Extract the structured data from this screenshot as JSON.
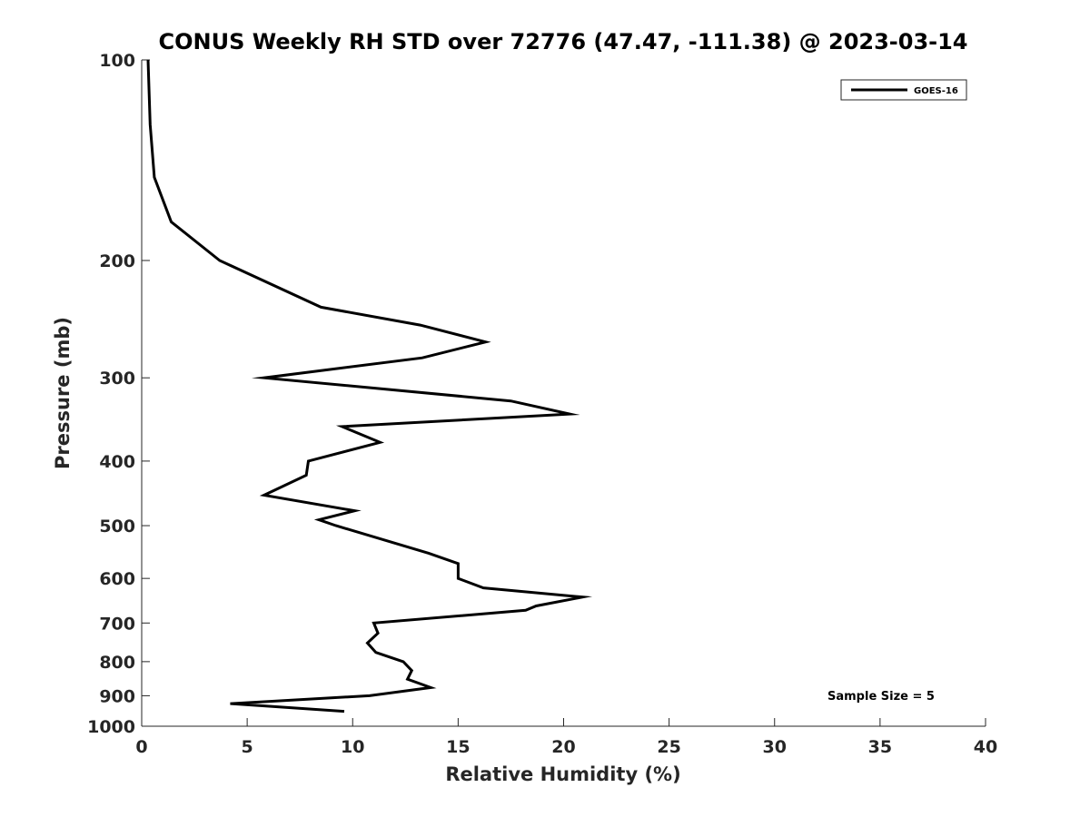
{
  "chart_data": {
    "type": "line",
    "title": "CONUS Weekly RH STD over 72776 (47.47, -111.38) @ 2023-03-14",
    "xlabel": "Relative Humidity (%)",
    "ylabel": "Pressure (mb)",
    "xlim": [
      0,
      40
    ],
    "ylim": [
      100,
      1000
    ],
    "y_scale": "log",
    "y_reversed": true,
    "x_ticks": [
      "0",
      "5",
      "10",
      "15",
      "20",
      "25",
      "30",
      "35",
      "40"
    ],
    "y_ticks": [
      "100",
      "200",
      "300",
      "400",
      "500",
      "600",
      "700",
      "800",
      "900",
      "1000"
    ],
    "grid": false,
    "legend_position": "top-right",
    "annotation": "Sample Size = 5",
    "series": [
      {
        "name": "GOES-16",
        "color": "#000000",
        "points": [
          {
            "x": 0.3,
            "p": 100
          },
          {
            "x": 0.4,
            "p": 125
          },
          {
            "x": 0.6,
            "p": 150
          },
          {
            "x": 1.4,
            "p": 175
          },
          {
            "x": 3.7,
            "p": 200
          },
          {
            "x": 8.5,
            "p": 235
          },
          {
            "x": 13.2,
            "p": 250
          },
          {
            "x": 16.3,
            "p": 265
          },
          {
            "x": 13.3,
            "p": 280
          },
          {
            "x": 5.8,
            "p": 300
          },
          {
            "x": 17.5,
            "p": 325
          },
          {
            "x": 20.3,
            "p": 340
          },
          {
            "x": 9.5,
            "p": 355
          },
          {
            "x": 11.3,
            "p": 375
          },
          {
            "x": 7.9,
            "p": 400
          },
          {
            "x": 7.8,
            "p": 420
          },
          {
            "x": 5.8,
            "p": 450
          },
          {
            "x": 10.1,
            "p": 475
          },
          {
            "x": 8.4,
            "p": 490
          },
          {
            "x": 9.2,
            "p": 500
          },
          {
            "x": 13.6,
            "p": 550
          },
          {
            "x": 15.0,
            "p": 570
          },
          {
            "x": 15.0,
            "p": 600
          },
          {
            "x": 16.2,
            "p": 620
          },
          {
            "x": 20.9,
            "p": 640
          },
          {
            "x": 18.7,
            "p": 660
          },
          {
            "x": 18.2,
            "p": 670
          },
          {
            "x": 11.0,
            "p": 700
          },
          {
            "x": 11.2,
            "p": 725
          },
          {
            "x": 10.7,
            "p": 750
          },
          {
            "x": 11.1,
            "p": 775
          },
          {
            "x": 12.4,
            "p": 800
          },
          {
            "x": 12.8,
            "p": 825
          },
          {
            "x": 12.6,
            "p": 850
          },
          {
            "x": 13.7,
            "p": 875
          },
          {
            "x": 10.8,
            "p": 900
          },
          {
            "x": 4.2,
            "p": 925
          },
          {
            "x": 9.6,
            "p": 950
          }
        ]
      }
    ]
  }
}
